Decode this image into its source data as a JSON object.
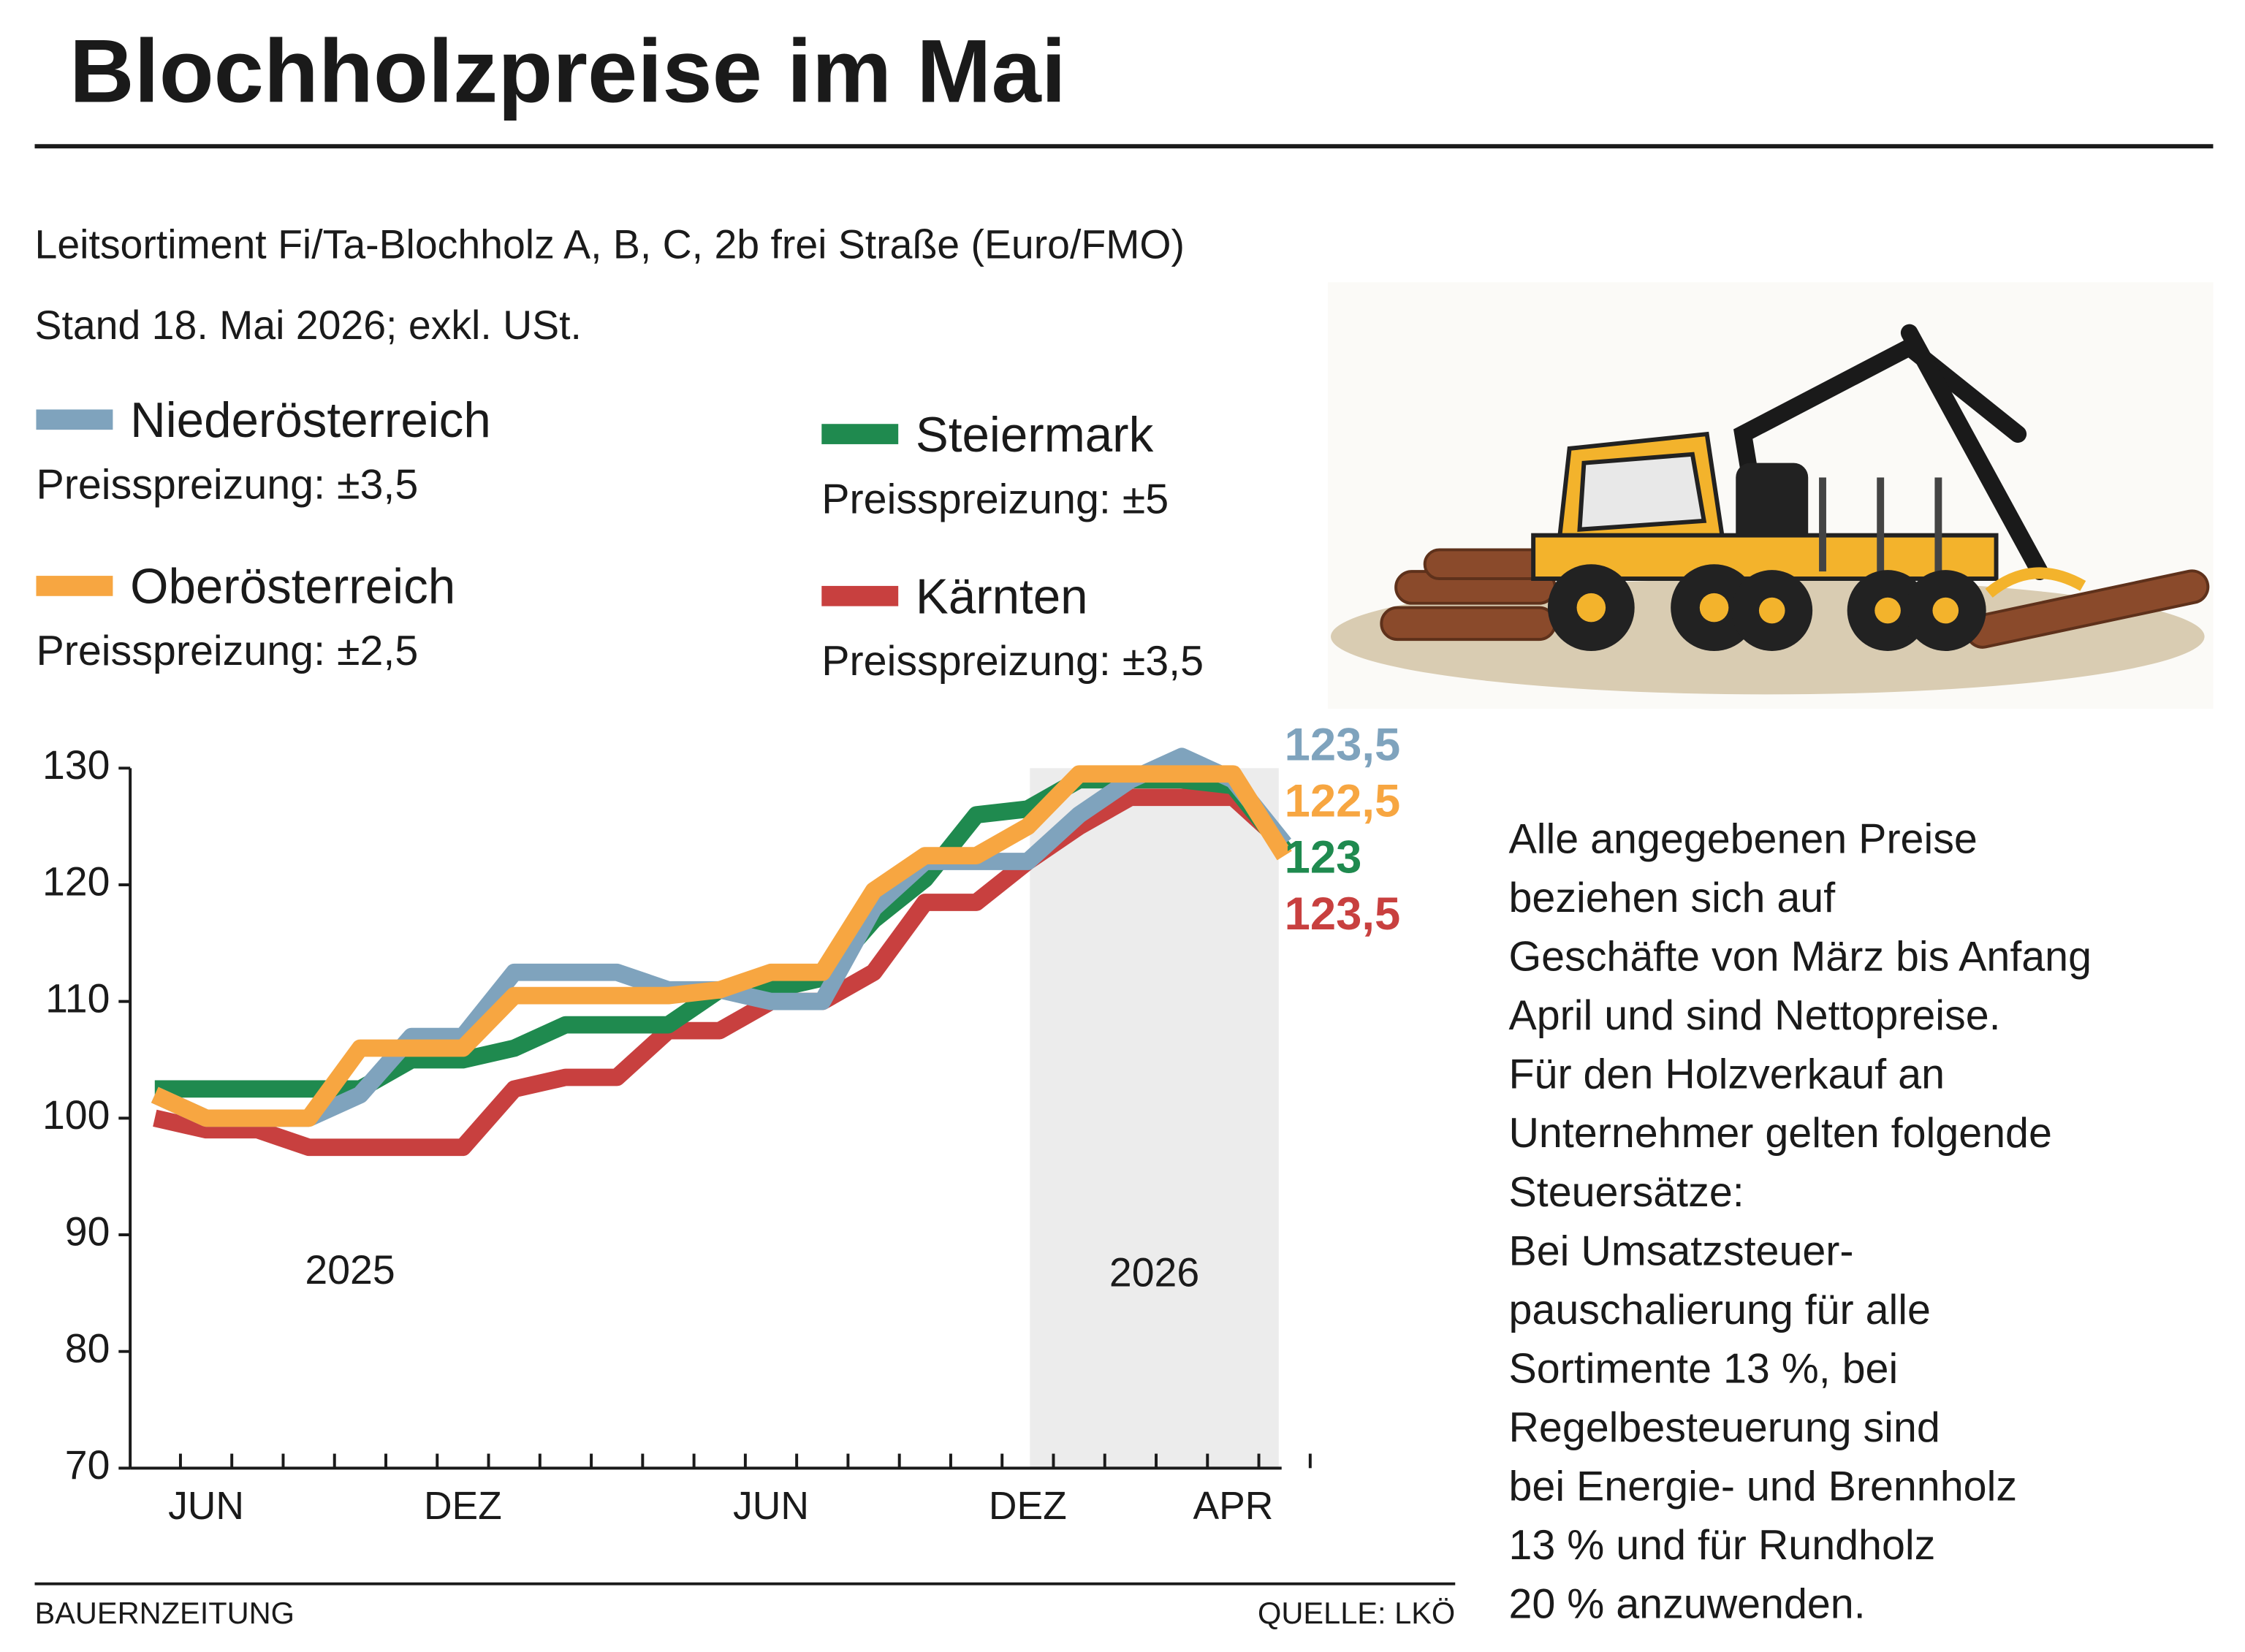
{
  "chart_data": {
    "type": "line",
    "title": "Blochholzpreise im Mai",
    "subtitle": [
      "Leitsortiment Fi/Ta-Blochholz A, B, C, 2b frei Straße (Euro/FMO)",
      "Stand 18. Mai 2026; exkl. USt."
    ],
    "categories": [
      null,
      "JUN",
      null,
      null,
      null,
      null,
      "DEZ",
      null,
      null,
      null,
      null,
      null,
      "JUN",
      null,
      null,
      null,
      null,
      "DEZ",
      null,
      null,
      null,
      "APR",
      null
    ],
    "ylim": [
      70,
      130
    ],
    "yticks": [
      70,
      80,
      90,
      100,
      110,
      120,
      130
    ],
    "series": [
      {
        "name": "Niederösterreich",
        "spread": "Preisspreizung: ±3,5",
        "color": "#7fa3bd",
        "values": [
          102,
          100,
          100,
          100,
          102,
          107,
          107,
          112.5,
          112.5,
          112.5,
          111,
          111,
          110,
          110,
          118,
          122,
          122,
          122,
          126,
          129,
          131,
          129,
          123.5
        ],
        "value_labels": [
          null,
          null,
          null,
          null,
          null,
          null,
          null,
          null,
          null,
          null,
          null,
          null,
          null,
          null,
          null,
          null,
          null,
          null,
          null,
          null,
          null,
          null,
          "123,5"
        ]
      },
      {
        "name": "Oberösterreich",
        "spread": "Preisspreizung: ±2,5",
        "color": "#f7a641",
        "values": [
          102,
          100,
          100,
          100,
          106,
          106,
          106,
          110.5,
          110.5,
          110.5,
          110.5,
          111,
          112.5,
          112.5,
          119.5,
          122.5,
          122.5,
          125,
          129.5,
          129.5,
          129.5,
          129.5,
          122.5
        ],
        "value_labels": [
          null,
          null,
          null,
          null,
          null,
          null,
          null,
          null,
          null,
          null,
          null,
          null,
          null,
          null,
          null,
          null,
          null,
          null,
          null,
          null,
          null,
          null,
          "122,5"
        ]
      },
      {
        "name": "Steiermark",
        "spread": "Preisspreizung: ±5",
        "color": "#1f8a4f",
        "values": [
          102.5,
          102.5,
          102.5,
          102.5,
          102.5,
          105,
          105,
          106,
          108,
          108,
          108,
          111,
          111,
          112,
          117,
          120.5,
          126,
          126.5,
          129,
          129,
          129,
          128.5,
          123
        ],
        "value_labels": [
          null,
          null,
          null,
          null,
          null,
          null,
          null,
          null,
          null,
          null,
          null,
          null,
          null,
          null,
          null,
          null,
          null,
          null,
          null,
          null,
          null,
          null,
          "123"
        ]
      },
      {
        "name": "Kärnten",
        "spread": "Preisspreizung: ±3,5",
        "color": "#c8403f",
        "values": [
          100,
          99,
          99,
          97.5,
          97.5,
          97.5,
          97.5,
          102.5,
          103.5,
          103.5,
          107.5,
          107.5,
          110,
          110,
          112.5,
          118.5,
          118.5,
          122,
          125,
          127.5,
          127.5,
          127.5,
          123.5
        ],
        "value_labels": [
          null,
          null,
          null,
          null,
          null,
          null,
          null,
          null,
          null,
          null,
          null,
          null,
          null,
          null,
          null,
          null,
          null,
          null,
          null,
          null,
          null,
          null,
          "123,5"
        ]
      }
    ],
    "annotations": [
      "2025",
      "2026"
    ],
    "note": [
      "Alle angegebenen Preise",
      "beziehen sich auf",
      "Geschäfte von März bis Anfang",
      "April und sind Nettopreise.",
      "Für den Holzverkauf an",
      "Unternehmer gelten folgende",
      "Steuersätze:",
      "Bei Umsatzsteuer-",
      "pauschalierung für alle",
      "Sortimente 13 %, bei",
      "Regelbesteuerung sind",
      "bei Energie- und Brennholz",
      "13 % und für Rundholz",
      "20 % anzuwenden."
    ],
    "footer": {
      "left": "BAUERNZEITUNG",
      "right": "QUELLE: LKÖ"
    }
  }
}
